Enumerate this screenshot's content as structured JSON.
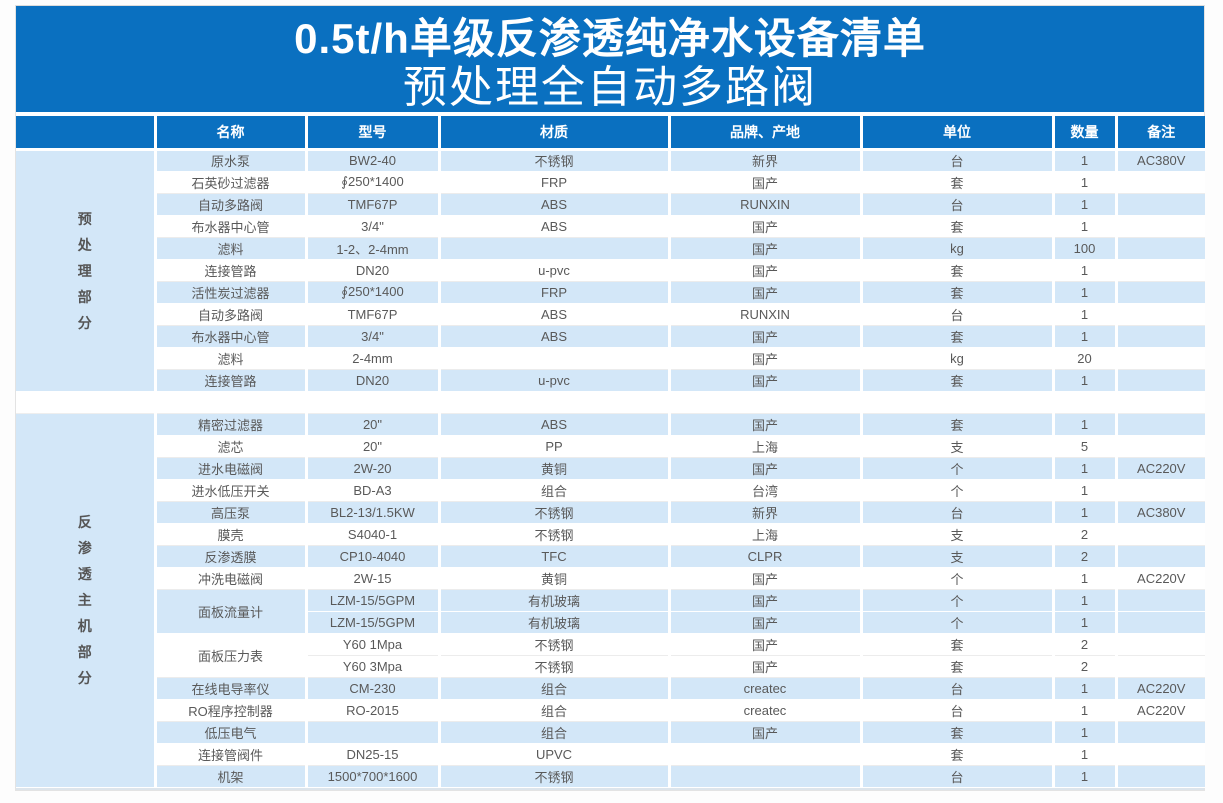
{
  "header": {
    "title": "0.5t/h单级反渗透纯净水设备清单",
    "subtitle": "预处理全自动多路阀"
  },
  "colors": {
    "header_blue": "#0a70c0",
    "row_light_blue": "#d3e7f8",
    "body_text": "#595959"
  },
  "table": {
    "columns": [
      "名称",
      "型号",
      "材质",
      "品牌、产地",
      "单位",
      "数量",
      "备注"
    ],
    "sections": [
      {
        "label": "预处理部分",
        "rows": [
          {
            "name": "原水泵",
            "model": "BW2-40",
            "material": "不锈钢",
            "brand": "新界",
            "unit": "台",
            "qty": "1",
            "note": "AC380V",
            "shade": true
          },
          {
            "name": "石英砂过滤器",
            "model": "∮250*1400",
            "material": "FRP",
            "brand": "国产",
            "unit": "套",
            "qty": "1",
            "note": "",
            "shade": false
          },
          {
            "name": "自动多路阀",
            "model": "TMF67P",
            "material": "ABS",
            "brand": "RUNXIN",
            "unit": "台",
            "qty": "1",
            "note": "",
            "shade": true
          },
          {
            "name": "布水器中心管",
            "model": "3/4\"",
            "material": "ABS",
            "brand": "国产",
            "unit": "套",
            "qty": "1",
            "note": "",
            "shade": false
          },
          {
            "name": "滤料",
            "model": "1-2、2-4mm",
            "material": "",
            "brand": "国产",
            "unit": "kg",
            "qty": "100",
            "note": "",
            "shade": true
          },
          {
            "name": "连接管路",
            "model": "DN20",
            "material": "u-pvc",
            "brand": "国产",
            "unit": "套",
            "qty": "1",
            "note": "",
            "shade": false
          },
          {
            "name": "活性炭过滤器",
            "model": "∮250*1400",
            "material": "FRP",
            "brand": "国产",
            "unit": "套",
            "qty": "1",
            "note": "",
            "shade": true
          },
          {
            "name": "自动多路阀",
            "model": "TMF67P",
            "material": "ABS",
            "brand": "RUNXIN",
            "unit": "台",
            "qty": "1",
            "note": "",
            "shade": false
          },
          {
            "name": "布水器中心管",
            "model": "3/4\"",
            "material": "ABS",
            "brand": "国产",
            "unit": "套",
            "qty": "1",
            "note": "",
            "shade": true
          },
          {
            "name": "滤料",
            "model": "2-4mm",
            "material": "",
            "brand": "国产",
            "unit": "kg",
            "qty": "20",
            "note": "",
            "shade": false
          },
          {
            "name": "连接管路",
            "model": "DN20",
            "material": "u-pvc",
            "brand": "国产",
            "unit": "套",
            "qty": "1",
            "note": "",
            "shade": true
          }
        ]
      },
      {
        "label": "反渗透主机部分",
        "rows": [
          {
            "name": "精密过滤器",
            "model": "20\"",
            "material": "ABS",
            "brand": "国产",
            "unit": "套",
            "qty": "1",
            "note": "",
            "shade": true
          },
          {
            "name": "滤芯",
            "model": "20\"",
            "material": "PP",
            "brand": "上海",
            "unit": "支",
            "qty": "5",
            "note": "",
            "shade": false
          },
          {
            "name": "进水电磁阀",
            "model": "2W-20",
            "material": "黄铜",
            "brand": "国产",
            "unit": "个",
            "qty": "1",
            "note": "AC220V",
            "shade": true
          },
          {
            "name": "进水低压开关",
            "model": "BD-A3",
            "material": "组合",
            "brand": "台湾",
            "unit": "个",
            "qty": "1",
            "note": "",
            "shade": false
          },
          {
            "name": "高压泵",
            "model": "BL2-13/1.5KW",
            "material": "不锈钢",
            "brand": "新界",
            "unit": "台",
            "qty": "1",
            "note": "AC380V",
            "shade": true
          },
          {
            "name": "膜壳",
            "model": "S4040-1",
            "material": "不锈钢",
            "brand": "上海",
            "unit": "支",
            "qty": "2",
            "note": "",
            "shade": false
          },
          {
            "name": "反渗透膜",
            "model": "CP10-4040",
            "material": "TFC",
            "brand": "CLPR",
            "unit": "支",
            "qty": "2",
            "note": "",
            "shade": true
          },
          {
            "name": "冲洗电磁阀",
            "model": "2W-15",
            "material": "黄铜",
            "brand": "国产",
            "unit": "个",
            "qty": "1",
            "note": "AC220V",
            "shade": false
          },
          {
            "name": "面板流量计",
            "span": 2,
            "model": "LZM-15/5GPM",
            "material": "有机玻璃",
            "brand": "国产",
            "unit": "个",
            "qty": "1",
            "note": "",
            "shade": true
          },
          {
            "merged": true,
            "model": "LZM-15/5GPM",
            "material": "有机玻璃",
            "brand": "国产",
            "unit": "个",
            "qty": "1",
            "note": "",
            "shade": true
          },
          {
            "name": "面板压力表",
            "span": 2,
            "model": "Y60 1Mpa",
            "material": "不锈钢",
            "brand": "国产",
            "unit": "套",
            "qty": "2",
            "note": "",
            "shade": false
          },
          {
            "merged": true,
            "model": "Y60 3Mpa",
            "material": "不锈钢",
            "brand": "国产",
            "unit": "套",
            "qty": "2",
            "note": "",
            "shade": false
          },
          {
            "name": "在线电导率仪",
            "model": "CM-230",
            "material": "组合",
            "brand": "createc",
            "unit": "台",
            "qty": "1",
            "note": "AC220V",
            "shade": true
          },
          {
            "name": "RO程序控制器",
            "model": "RO-2015",
            "material": "组合",
            "brand": "createc",
            "unit": "台",
            "qty": "1",
            "note": "AC220V",
            "shade": false
          },
          {
            "name": "低压电气",
            "model": "",
            "material": "组合",
            "brand": "国产",
            "unit": "套",
            "qty": "1",
            "note": "",
            "shade": true
          },
          {
            "name": "连接管阀件",
            "model": "DN25-15",
            "material": "UPVC",
            "brand": "",
            "unit": "套",
            "qty": "1",
            "note": "",
            "shade": false
          },
          {
            "name": "机架",
            "model": "1500*700*1600",
            "material": "不锈钢",
            "brand": "",
            "unit": "台",
            "qty": "1",
            "note": "",
            "shade": true
          }
        ]
      }
    ]
  }
}
